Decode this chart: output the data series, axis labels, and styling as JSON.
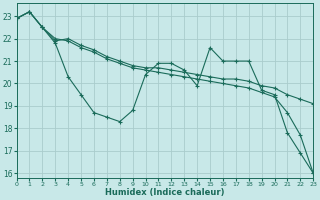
{
  "xlabel": "Humidex (Indice chaleur)",
  "background_color": "#c8e8e8",
  "grid_color": "#aacccc",
  "line_color": "#1a6b5a",
  "xlim": [
    0,
    23
  ],
  "ylim": [
    15.8,
    23.6
  ],
  "yticks": [
    16,
    17,
    18,
    19,
    20,
    21,
    22,
    23
  ],
  "xticks": [
    0,
    1,
    2,
    3,
    4,
    5,
    6,
    7,
    8,
    9,
    10,
    11,
    12,
    13,
    14,
    15,
    16,
    17,
    18,
    19,
    20,
    21,
    22,
    23
  ],
  "line1_x": [
    0,
    1,
    2,
    3,
    4,
    5,
    6,
    7,
    8,
    9,
    10,
    11,
    12,
    13,
    14,
    15,
    16,
    17,
    18,
    19,
    20,
    21,
    22,
    23
  ],
  "line1_y": [
    22.9,
    23.2,
    22.5,
    21.8,
    20.3,
    19.5,
    18.7,
    18.5,
    18.3,
    18.8,
    20.4,
    20.9,
    20.9,
    20.6,
    19.9,
    21.6,
    21.0,
    21.0,
    21.0,
    19.7,
    19.5,
    17.8,
    16.9,
    16.0
  ],
  "line2_x": [
    0,
    1,
    2,
    3,
    4,
    5,
    6,
    7,
    8,
    9,
    10,
    11,
    12,
    13,
    14,
    15,
    16,
    17,
    18,
    19,
    20,
    21,
    22,
    23
  ],
  "line2_y": [
    22.9,
    23.2,
    22.5,
    21.9,
    22.0,
    21.7,
    21.5,
    21.2,
    21.0,
    20.8,
    20.7,
    20.7,
    20.6,
    20.5,
    20.4,
    20.3,
    20.2,
    20.2,
    20.1,
    19.9,
    19.8,
    19.5,
    19.3,
    19.1
  ],
  "line3_x": [
    0,
    1,
    2,
    3,
    4,
    5,
    6,
    7,
    8,
    9,
    10,
    11,
    12,
    13,
    14,
    15,
    16,
    17,
    18,
    19,
    20,
    21,
    22,
    23
  ],
  "line3_y": [
    22.9,
    23.2,
    22.5,
    22.0,
    21.9,
    21.6,
    21.4,
    21.1,
    20.9,
    20.7,
    20.6,
    20.5,
    20.4,
    20.3,
    20.2,
    20.1,
    20.0,
    19.9,
    19.8,
    19.6,
    19.4,
    18.7,
    17.7,
    16.0
  ]
}
